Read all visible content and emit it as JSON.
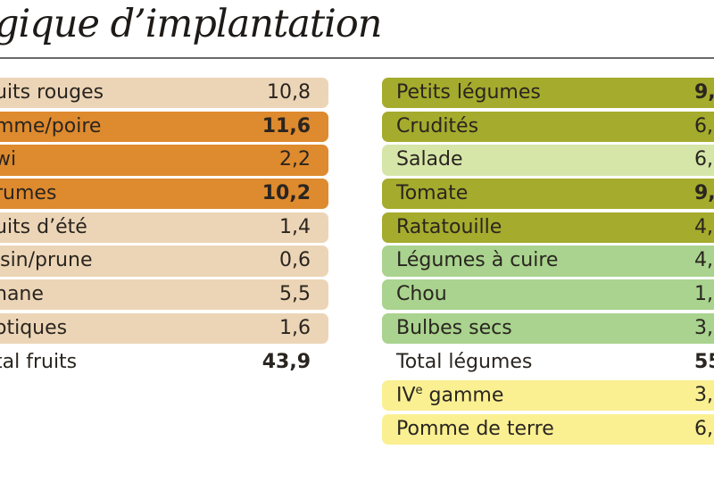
{
  "title": "gique d’implantation",
  "colors": {
    "fruit_light": "#ecd5b6",
    "fruit_dark": "#de8a2e",
    "veg_olive": "#a5ab2c",
    "veg_light_green": "#d6e6a8",
    "veg_green": "#a9d38e",
    "veg_yellow": "#faf092"
  },
  "fruits": {
    "rows": [
      {
        "label": "uits rouges",
        "value": "10,8",
        "bg": "fruit_light",
        "bold": false
      },
      {
        "label": "mme/poire",
        "value": "11,6",
        "bg": "fruit_dark",
        "bold": true
      },
      {
        "label": "wi",
        "value": "2,2",
        "bg": "fruit_dark",
        "bold": false
      },
      {
        "label": "rumes",
        "value": "10,2",
        "bg": "fruit_dark",
        "bold": true
      },
      {
        "label": "uits d’été",
        "value": "1,4",
        "bg": "fruit_light",
        "bold": false
      },
      {
        "label": "isin/prune",
        "value": "0,6",
        "bg": "fruit_light",
        "bold": false
      },
      {
        "label": "nane",
        "value": "5,5",
        "bg": "fruit_light",
        "bold": false
      },
      {
        "label": "otiques",
        "value": "1,6",
        "bg": "fruit_light",
        "bold": false
      }
    ],
    "total": {
      "label": "tal fruits",
      "value": "43,9"
    }
  },
  "vegetables": {
    "rows": [
      {
        "label": "Petits légumes",
        "value": "9,",
        "bg": "veg_olive",
        "bold": true
      },
      {
        "label": "Crudités",
        "value": "6,",
        "bg": "veg_olive",
        "bold": false
      },
      {
        "label": "Salade",
        "value": "6,",
        "bg": "veg_light_green",
        "bold": false
      },
      {
        "label": "Tomate",
        "value": "9,",
        "bg": "veg_olive",
        "bold": true
      },
      {
        "label": "Ratatouille",
        "value": "4,",
        "bg": "veg_olive",
        "bold": false
      },
      {
        "label": "Légumes à cuire",
        "value": "4,",
        "bg": "veg_green",
        "bold": false
      },
      {
        "label": "Chou",
        "value": "1,",
        "bg": "veg_green",
        "bold": false
      },
      {
        "label": "Bulbes secs",
        "value": "3,",
        "bg": "veg_green",
        "bold": false
      },
      {
        "label": "Total légumes",
        "value": "55,",
        "bg": null,
        "bold": false,
        "value_bold": true
      },
      {
        "label_main": "IV",
        "label_sup": "e",
        "label_rest": " gamme",
        "value": "3,",
        "bg": "veg_yellow",
        "bold": false
      },
      {
        "label": "Pomme de terre",
        "value": "6,",
        "bg": "veg_yellow",
        "bold": false
      }
    ]
  }
}
